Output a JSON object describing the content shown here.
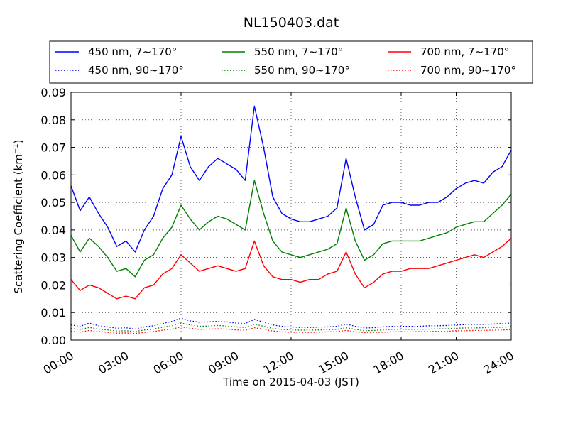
{
  "chart_data": {
    "type": "line",
    "title": "NL150403.dat",
    "xlabel": "Time on 2015-04-03 (JST)",
    "ylabel": "Scattering Coefficient (km",
    "ylabel_sup": "−1",
    "ylabel_close": ")",
    "xlim": [
      "00:00",
      "24:00"
    ],
    "ylim": [
      0,
      0.09
    ],
    "xticks": [
      "00:00",
      "03:00",
      "06:00",
      "09:00",
      "12:00",
      "15:00",
      "18:00",
      "21:00",
      "24:00"
    ],
    "yticks": [
      "0.00",
      "0.01",
      "0.02",
      "0.03",
      "0.04",
      "0.05",
      "0.06",
      "0.07",
      "0.08",
      "0.09"
    ],
    "grid": true,
    "legend_position": "top",
    "x": [
      "00:00",
      "00:30",
      "01:00",
      "01:30",
      "02:00",
      "02:30",
      "03:00",
      "03:30",
      "04:00",
      "04:30",
      "05:00",
      "05:30",
      "06:00",
      "06:30",
      "07:00",
      "07:30",
      "08:00",
      "08:30",
      "09:00",
      "09:30",
      "10:00",
      "10:30",
      "11:00",
      "11:30",
      "12:00",
      "12:30",
      "13:00",
      "13:30",
      "14:00",
      "14:30",
      "15:00",
      "15:30",
      "16:00",
      "16:30",
      "17:00",
      "17:30",
      "18:00",
      "18:30",
      "19:00",
      "19:30",
      "20:00",
      "20:30",
      "21:00",
      "21:30",
      "22:00",
      "22:30",
      "23:00",
      "23:30",
      "24:00"
    ],
    "series": [
      {
        "name": "450 nm, 7∼170°",
        "color": "#0000ff",
        "style": "solid",
        "values": [
          0.056,
          0.047,
          0.052,
          0.046,
          0.041,
          0.034,
          0.036,
          0.032,
          0.04,
          0.045,
          0.055,
          0.06,
          0.074,
          0.063,
          0.058,
          0.063,
          0.066,
          0.064,
          0.062,
          0.058,
          0.085,
          0.07,
          0.052,
          0.046,
          0.044,
          0.043,
          0.043,
          0.044,
          0.045,
          0.048,
          0.066,
          0.052,
          0.04,
          0.042,
          0.049,
          0.05,
          0.05,
          0.049,
          0.049,
          0.05,
          0.05,
          0.052,
          0.055,
          0.057,
          0.058,
          0.057,
          0.061,
          0.063,
          0.069
        ]
      },
      {
        "name": "550 nm, 7∼170°",
        "color": "#008000",
        "style": "solid",
        "values": [
          0.038,
          0.032,
          0.037,
          0.034,
          0.03,
          0.025,
          0.026,
          0.023,
          0.029,
          0.031,
          0.037,
          0.041,
          0.049,
          0.044,
          0.04,
          0.043,
          0.045,
          0.044,
          0.042,
          0.04,
          0.058,
          0.046,
          0.036,
          0.032,
          0.031,
          0.03,
          0.031,
          0.032,
          0.033,
          0.035,
          0.048,
          0.036,
          0.029,
          0.031,
          0.035,
          0.036,
          0.036,
          0.036,
          0.036,
          0.037,
          0.038,
          0.039,
          0.041,
          0.042,
          0.043,
          0.043,
          0.046,
          0.049,
          0.053
        ]
      },
      {
        "name": "700 nm, 7∼170°",
        "color": "#ff0000",
        "style": "solid",
        "values": [
          0.022,
          0.018,
          0.02,
          0.019,
          0.017,
          0.015,
          0.016,
          0.015,
          0.019,
          0.02,
          0.024,
          0.026,
          0.031,
          0.028,
          0.025,
          0.026,
          0.027,
          0.026,
          0.025,
          0.026,
          0.036,
          0.027,
          0.023,
          0.022,
          0.022,
          0.021,
          0.022,
          0.022,
          0.024,
          0.025,
          0.032,
          0.024,
          0.019,
          0.021,
          0.024,
          0.025,
          0.025,
          0.026,
          0.026,
          0.026,
          0.027,
          0.028,
          0.029,
          0.03,
          0.031,
          0.03,
          0.032,
          0.034,
          0.037
        ]
      },
      {
        "name": "450 nm, 90∼170°",
        "color": "#0000ff",
        "style": "dotted",
        "values": [
          0.0055,
          0.005,
          0.0062,
          0.0052,
          0.0048,
          0.0043,
          0.0045,
          0.004,
          0.0048,
          0.0052,
          0.006,
          0.0068,
          0.008,
          0.007,
          0.0065,
          0.0066,
          0.0068,
          0.0066,
          0.0062,
          0.006,
          0.0075,
          0.0065,
          0.0055,
          0.005,
          0.0048,
          0.0046,
          0.0046,
          0.0047,
          0.0048,
          0.005,
          0.0058,
          0.005,
          0.0044,
          0.0045,
          0.0048,
          0.005,
          0.005,
          0.005,
          0.005,
          0.0052,
          0.0052,
          0.0053,
          0.0055,
          0.0056,
          0.0057,
          0.0057,
          0.0058,
          0.006,
          0.0062
        ]
      },
      {
        "name": "550 nm, 90∼170°",
        "color": "#008000",
        "style": "dotted",
        "values": [
          0.0042,
          0.0038,
          0.0046,
          0.004,
          0.0037,
          0.0033,
          0.0034,
          0.0031,
          0.0037,
          0.004,
          0.0047,
          0.0052,
          0.0062,
          0.0055,
          0.005,
          0.0051,
          0.0053,
          0.0051,
          0.0048,
          0.0046,
          0.0058,
          0.005,
          0.0042,
          0.0039,
          0.0037,
          0.0036,
          0.0036,
          0.0037,
          0.0038,
          0.0039,
          0.0045,
          0.0039,
          0.0034,
          0.0035,
          0.0037,
          0.0039,
          0.0039,
          0.0039,
          0.0039,
          0.004,
          0.0041,
          0.0041,
          0.0043,
          0.0044,
          0.0044,
          0.0045,
          0.0046,
          0.0047,
          0.0049
        ]
      },
      {
        "name": "700 nm, 90∼170°",
        "color": "#ff0000",
        "style": "dotted",
        "values": [
          0.0032,
          0.0029,
          0.0035,
          0.0031,
          0.0028,
          0.0025,
          0.0026,
          0.0024,
          0.0028,
          0.0031,
          0.0036,
          0.004,
          0.0048,
          0.0043,
          0.0039,
          0.004,
          0.0041,
          0.004,
          0.0037,
          0.0036,
          0.0045,
          0.0039,
          0.0033,
          0.003,
          0.0029,
          0.0028,
          0.0028,
          0.0029,
          0.003,
          0.0031,
          0.0035,
          0.003,
          0.0027,
          0.0027,
          0.0029,
          0.003,
          0.003,
          0.003,
          0.0031,
          0.0031,
          0.0032,
          0.0032,
          0.0034,
          0.0034,
          0.0035,
          0.0035,
          0.0036,
          0.0037,
          0.0038
        ]
      }
    ]
  }
}
